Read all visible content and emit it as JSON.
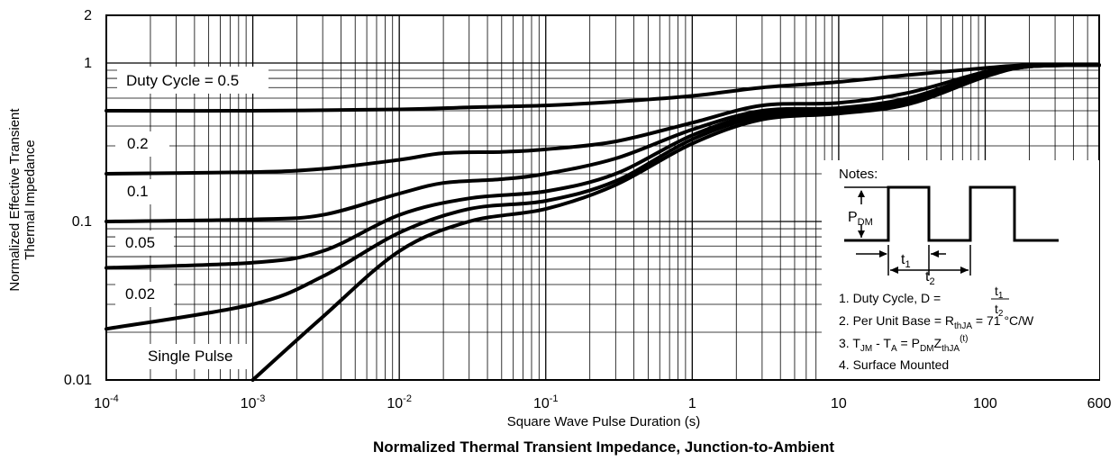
{
  "chart_data": {
    "type": "line",
    "title": "Normalized Thermal Transient Impedance, Junction-to-Ambient",
    "xlabel": "Square Wave Pulse Duration (s)",
    "ylabel": [
      "Normalized Effective Transient",
      "Thermal Impedance"
    ],
    "x_scale": "log",
    "y_scale": "log",
    "xlim": [
      0.0001,
      600
    ],
    "ylim": [
      0.01,
      2
    ],
    "grid": true,
    "x_ticks": [
      {
        "value": 0.0001,
        "base": "10",
        "exp": "-4"
      },
      {
        "value": 0.001,
        "base": "10",
        "exp": "-3"
      },
      {
        "value": 0.01,
        "base": "10",
        "exp": "-2"
      },
      {
        "value": 0.1,
        "base": "10",
        "exp": "-1"
      },
      {
        "value": 1,
        "base": "1",
        "exp": ""
      },
      {
        "value": 10,
        "base": "10",
        "exp": ""
      },
      {
        "value": 100,
        "base": "100",
        "exp": ""
      },
      {
        "value": 600,
        "base": "600",
        "exp": ""
      }
    ],
    "y_ticks": [
      {
        "value": 0.01,
        "label": "0.01"
      },
      {
        "value": 0.1,
        "label": "0.1"
      },
      {
        "value": 1,
        "label": "1"
      },
      {
        "value": 2,
        "label": "2"
      }
    ],
    "series": [
      {
        "name": "Duty Cycle = 0.5",
        "points": [
          [
            0.0001,
            0.5
          ],
          [
            0.001,
            0.5
          ],
          [
            0.01,
            0.51
          ],
          [
            0.03,
            0.525
          ],
          [
            0.1,
            0.54
          ],
          [
            0.3,
            0.57
          ],
          [
            1,
            0.62
          ],
          [
            3,
            0.7
          ],
          [
            10,
            0.76
          ],
          [
            30,
            0.84
          ],
          [
            100,
            0.93
          ],
          [
            200,
            0.97
          ],
          [
            600,
            0.97
          ]
        ]
      },
      {
        "name": "0.2",
        "points": [
          [
            0.0001,
            0.2
          ],
          [
            0.001,
            0.205
          ],
          [
            0.003,
            0.215
          ],
          [
            0.01,
            0.245
          ],
          [
            0.02,
            0.27
          ],
          [
            0.05,
            0.275
          ],
          [
            0.1,
            0.285
          ],
          [
            0.3,
            0.32
          ],
          [
            1,
            0.42
          ],
          [
            3,
            0.54
          ],
          [
            10,
            0.56
          ],
          [
            30,
            0.65
          ],
          [
            100,
            0.88
          ],
          [
            200,
            0.96
          ],
          [
            600,
            0.97
          ]
        ]
      },
      {
        "name": "0.1",
        "points": [
          [
            0.0001,
            0.1
          ],
          [
            0.001,
            0.103
          ],
          [
            0.003,
            0.11
          ],
          [
            0.01,
            0.15
          ],
          [
            0.02,
            0.175
          ],
          [
            0.05,
            0.185
          ],
          [
            0.1,
            0.2
          ],
          [
            0.3,
            0.25
          ],
          [
            1,
            0.38
          ],
          [
            3,
            0.5
          ],
          [
            10,
            0.52
          ],
          [
            30,
            0.6
          ],
          [
            100,
            0.86
          ],
          [
            200,
            0.96
          ],
          [
            600,
            0.97
          ]
        ]
      },
      {
        "name": "0.05",
        "points": [
          [
            0.0001,
            0.051
          ],
          [
            0.001,
            0.055
          ],
          [
            0.003,
            0.065
          ],
          [
            0.01,
            0.11
          ],
          [
            0.03,
            0.14
          ],
          [
            0.1,
            0.155
          ],
          [
            0.3,
            0.2
          ],
          [
            1,
            0.35
          ],
          [
            3,
            0.48
          ],
          [
            10,
            0.5
          ],
          [
            30,
            0.58
          ],
          [
            100,
            0.84
          ],
          [
            200,
            0.95
          ],
          [
            600,
            0.97
          ]
        ]
      },
      {
        "name": "0.02",
        "points": [
          [
            0.0001,
            0.021
          ],
          [
            0.001,
            0.03
          ],
          [
            0.003,
            0.045
          ],
          [
            0.01,
            0.085
          ],
          [
            0.03,
            0.12
          ],
          [
            0.1,
            0.135
          ],
          [
            0.3,
            0.18
          ],
          [
            1,
            0.33
          ],
          [
            3,
            0.46
          ],
          [
            10,
            0.49
          ],
          [
            30,
            0.56
          ],
          [
            100,
            0.83
          ],
          [
            200,
            0.95
          ],
          [
            600,
            0.97
          ]
        ]
      },
      {
        "name": "Single Pulse",
        "points": [
          [
            0.001,
            0.01
          ],
          [
            0.003,
            0.025
          ],
          [
            0.01,
            0.065
          ],
          [
            0.03,
            0.1
          ],
          [
            0.1,
            0.12
          ],
          [
            0.3,
            0.17
          ],
          [
            1,
            0.31
          ],
          [
            3,
            0.44
          ],
          [
            10,
            0.48
          ],
          [
            30,
            0.55
          ],
          [
            100,
            0.82
          ],
          [
            200,
            0.95
          ],
          [
            600,
            0.97
          ]
        ]
      }
    ],
    "notes": {
      "heading": "Notes:",
      "pdm": "P",
      "pdm_sub": "DM",
      "t1": "t",
      "t1_sub": "1",
      "t2": "t",
      "t2_sub": "2",
      "line1_text": "1. Duty Cycle, D =",
      "line1_num": "t",
      "line1_num_sub": "1",
      "line1_den": "t",
      "line1_den_sub": "2",
      "line2_a": "2. Per Unit Base = R",
      "line2_sub": "thJA",
      "line2_b": " = 71 °C/W",
      "line3_a": "3. T",
      "line3_sub1": "JM",
      "line3_b": " - T",
      "line3_sub2": "A",
      "line3_c": " = P",
      "line3_sub3": "DM",
      "line3_d": "Z",
      "line3_sub4": "thJA",
      "line3_sup": "(t)",
      "line4": "4. Surface Mounted"
    }
  }
}
